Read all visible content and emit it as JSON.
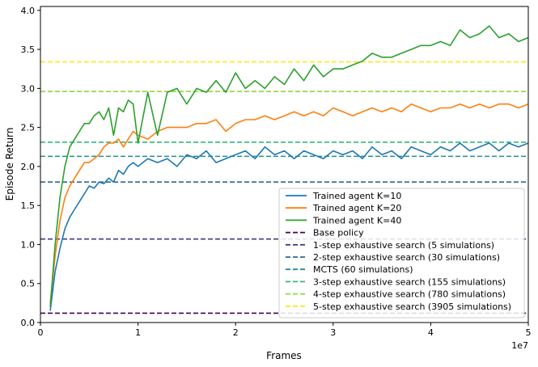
{
  "chart_data": {
    "type": "line",
    "title": "",
    "xlabel": "Frames",
    "ylabel": "Episode Return",
    "x_multiplier_label": "1e7",
    "xlim": [
      0,
      5
    ],
    "ylim": [
      0,
      4.05
    ],
    "xticks": [
      "0",
      "1",
      "2",
      "3",
      "4",
      "5"
    ],
    "yticks": [
      "0.0",
      "0.5",
      "1.0",
      "1.5",
      "2.0",
      "2.5",
      "3.0",
      "3.5",
      "4.0"
    ],
    "legend_position": "lower-right",
    "series": [
      {
        "name": "Trained agent K=10",
        "color": "#1f77b4",
        "x": [
          0.1,
          0.15,
          0.2,
          0.25,
          0.3,
          0.35,
          0.4,
          0.45,
          0.5,
          0.55,
          0.6,
          0.65,
          0.7,
          0.75,
          0.8,
          0.85,
          0.9,
          0.95,
          1.0,
          1.1,
          1.2,
          1.3,
          1.4,
          1.5,
          1.6,
          1.7,
          1.8,
          1.9,
          2.0,
          2.1,
          2.2,
          2.3,
          2.4,
          2.5,
          2.6,
          2.7,
          2.8,
          2.9,
          3.0,
          3.1,
          3.2,
          3.3,
          3.4,
          3.5,
          3.6,
          3.7,
          3.8,
          3.9,
          4.0,
          4.1,
          4.2,
          4.3,
          4.4,
          4.5,
          4.6,
          4.7,
          4.8,
          4.9,
          5.0
        ],
        "values": [
          0.15,
          0.65,
          0.95,
          1.2,
          1.35,
          1.45,
          1.55,
          1.65,
          1.75,
          1.72,
          1.8,
          1.78,
          1.85,
          1.8,
          1.95,
          1.9,
          2.0,
          2.05,
          2.0,
          2.1,
          2.05,
          2.1,
          2.0,
          2.15,
          2.1,
          2.2,
          2.05,
          2.1,
          2.15,
          2.2,
          2.1,
          2.25,
          2.15,
          2.2,
          2.1,
          2.2,
          2.15,
          2.1,
          2.2,
          2.15,
          2.2,
          2.1,
          2.25,
          2.15,
          2.2,
          2.1,
          2.25,
          2.2,
          2.15,
          2.25,
          2.2,
          2.3,
          2.2,
          2.25,
          2.3,
          2.2,
          2.3,
          2.25,
          2.3
        ]
      },
      {
        "name": "Trained agent K=20",
        "color": "#ff7f0e",
        "x": [
          0.1,
          0.15,
          0.2,
          0.25,
          0.3,
          0.35,
          0.4,
          0.45,
          0.5,
          0.55,
          0.6,
          0.65,
          0.7,
          0.75,
          0.8,
          0.85,
          0.9,
          0.95,
          1.0,
          1.1,
          1.2,
          1.3,
          1.4,
          1.5,
          1.6,
          1.7,
          1.8,
          1.9,
          2.0,
          2.1,
          2.2,
          2.3,
          2.4,
          2.5,
          2.6,
          2.7,
          2.8,
          2.9,
          3.0,
          3.1,
          3.2,
          3.3,
          3.4,
          3.5,
          3.6,
          3.7,
          3.8,
          3.9,
          4.0,
          4.1,
          4.2,
          4.3,
          4.4,
          4.5,
          4.6,
          4.7,
          4.8,
          4.9,
          5.0
        ],
        "values": [
          0.25,
          0.85,
          1.3,
          1.6,
          1.75,
          1.85,
          1.95,
          2.05,
          2.05,
          2.1,
          2.15,
          2.25,
          2.3,
          2.3,
          2.35,
          2.25,
          2.35,
          2.45,
          2.4,
          2.35,
          2.45,
          2.5,
          2.5,
          2.5,
          2.55,
          2.55,
          2.6,
          2.45,
          2.55,
          2.6,
          2.6,
          2.65,
          2.6,
          2.65,
          2.7,
          2.65,
          2.7,
          2.65,
          2.75,
          2.7,
          2.65,
          2.7,
          2.75,
          2.7,
          2.75,
          2.7,
          2.8,
          2.75,
          2.7,
          2.75,
          2.75,
          2.8,
          2.75,
          2.8,
          2.75,
          2.8,
          2.8,
          2.75,
          2.8
        ]
      },
      {
        "name": "Trained agent K=40",
        "color": "#2ca02c",
        "x": [
          0.1,
          0.15,
          0.2,
          0.25,
          0.3,
          0.35,
          0.4,
          0.45,
          0.5,
          0.55,
          0.6,
          0.65,
          0.7,
          0.75,
          0.8,
          0.85,
          0.9,
          0.95,
          1.0,
          1.1,
          1.2,
          1.3,
          1.4,
          1.5,
          1.6,
          1.7,
          1.8,
          1.9,
          2.0,
          2.1,
          2.2,
          2.3,
          2.4,
          2.5,
          2.6,
          2.7,
          2.8,
          2.9,
          3.0,
          3.1,
          3.2,
          3.3,
          3.4,
          3.5,
          3.6,
          3.7,
          3.8,
          3.9,
          4.0,
          4.1,
          4.2,
          4.3,
          4.4,
          4.5,
          4.6,
          4.7,
          4.8,
          4.9,
          5.0
        ],
        "values": [
          0.2,
          1.0,
          1.6,
          2.0,
          2.25,
          2.35,
          2.45,
          2.55,
          2.55,
          2.65,
          2.7,
          2.6,
          2.75,
          2.4,
          2.75,
          2.7,
          2.85,
          2.8,
          2.3,
          2.95,
          2.4,
          2.95,
          3.0,
          2.8,
          3.0,
          2.95,
          3.1,
          2.95,
          3.2,
          3.0,
          3.1,
          3.0,
          3.15,
          3.05,
          3.25,
          3.1,
          3.3,
          3.15,
          3.25,
          3.25,
          3.3,
          3.35,
          3.45,
          3.4,
          3.4,
          3.45,
          3.5,
          3.55,
          3.55,
          3.6,
          3.55,
          3.75,
          3.65,
          3.7,
          3.8,
          3.65,
          3.7,
          3.6,
          3.65
        ]
      }
    ],
    "reference_lines": [
      {
        "name": "Base policy",
        "value": 0.12,
        "color": "#440154"
      },
      {
        "name": "1-step exhaustive search (5 simulations)",
        "value": 1.07,
        "color": "#443983"
      },
      {
        "name": "2-step exhaustive search (30 simulations)",
        "value": 1.8,
        "color": "#31688e"
      },
      {
        "name": "MCTS (60 simulations)",
        "value": 2.13,
        "color": "#21918c"
      },
      {
        "name": "3-step exhaustive search  (155 simulations)",
        "value": 2.31,
        "color": "#35b779"
      },
      {
        "name": "4-step exhaustive search  (780 simulations)",
        "value": 2.96,
        "color": "#90d743"
      },
      {
        "name": "5-step exhaustive search  (3905 simulations)",
        "value": 3.34,
        "color": "#fde725"
      }
    ]
  }
}
